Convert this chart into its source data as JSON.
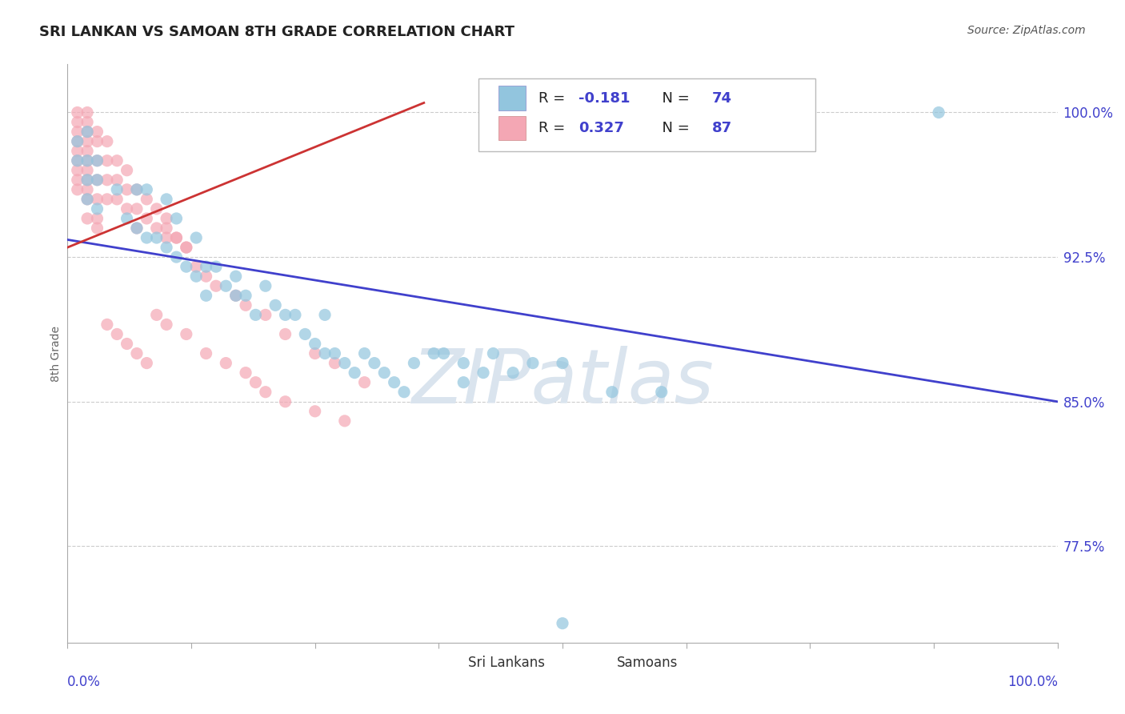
{
  "title": "SRI LANKAN VS SAMOAN 8TH GRADE CORRELATION CHART",
  "source": "Source: ZipAtlas.com",
  "ylabel": "8th Grade",
  "yticks": [
    0.775,
    0.85,
    0.925,
    1.0
  ],
  "ytick_labels": [
    "77.5%",
    "85.0%",
    "92.5%",
    "100.0%"
  ],
  "xlim": [
    0.0,
    1.0
  ],
  "ylim": [
    0.725,
    1.025
  ],
  "blue_R": -0.181,
  "blue_N": 74,
  "pink_R": 0.327,
  "pink_N": 87,
  "blue_color": "#92c5de",
  "pink_color": "#f4a7b4",
  "blue_line_color": "#4040cc",
  "pink_line_color": "#cc3333",
  "watermark": "ZIPatlas",
  "watermark_color": "#dae4ee",
  "legend_blue_label": "Sri Lankans",
  "legend_pink_label": "Samoans",
  "background_color": "#ffffff",
  "grid_color": "#cccccc",
  "title_color": "#222222",
  "source_color": "#555555",
  "tick_label_color": "#4040cc",
  "ylabel_color": "#666666"
}
